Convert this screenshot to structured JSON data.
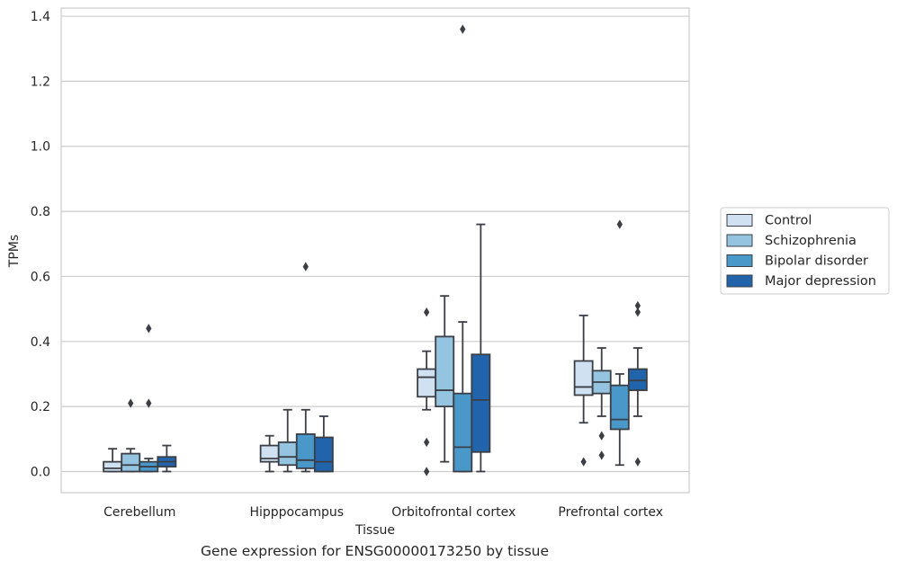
{
  "caption": "Gene expression for ENSG00000173250 by tissue",
  "chart_data": {
    "type": "box",
    "xlabel": "Tissue",
    "ylabel": "TPMs",
    "ylim": [
      -0.065,
      1.425
    ],
    "yticks": [
      "0.0",
      "0.2",
      "0.4",
      "0.6",
      "0.8",
      "1.0",
      "1.2",
      "1.4"
    ],
    "ytick_values": [
      0,
      0.2,
      0.4,
      0.6,
      0.8,
      1.0,
      1.2,
      1.4
    ],
    "grid": "horizontal",
    "legend_position": "right-outside",
    "categories": [
      "Cerebellum",
      "Hipppocampus",
      "Orbitofrontal cortex",
      "Prefrontal cortex"
    ],
    "series": [
      {
        "name": "Control",
        "color": "#d0e1f2",
        "boxes": [
          {
            "whislo": 0.0,
            "q1": 0.0,
            "med": 0.01,
            "q3": 0.03,
            "whishi": 0.07,
            "fliers": []
          },
          {
            "whislo": 0.0,
            "q1": 0.03,
            "med": 0.04,
            "q3": 0.08,
            "whishi": 0.11,
            "fliers": []
          },
          {
            "whislo": 0.19,
            "q1": 0.23,
            "med": 0.29,
            "q3": 0.315,
            "whishi": 0.37,
            "fliers": [
              0.49,
              0.09,
              0.0
            ]
          },
          {
            "whislo": 0.15,
            "q1": 0.235,
            "med": 0.26,
            "q3": 0.34,
            "whishi": 0.48,
            "fliers": [
              0.03
            ]
          }
        ]
      },
      {
        "name": "Schizophrenia",
        "color": "#94c4df",
        "boxes": [
          {
            "whislo": 0.0,
            "q1": 0.0,
            "med": 0.02,
            "q3": 0.055,
            "whishi": 0.07,
            "fliers": [
              0.21
            ]
          },
          {
            "whislo": 0.0,
            "q1": 0.02,
            "med": 0.045,
            "q3": 0.09,
            "whishi": 0.19,
            "fliers": []
          },
          {
            "whislo": 0.03,
            "q1": 0.2,
            "med": 0.25,
            "q3": 0.415,
            "whishi": 0.54,
            "fliers": []
          },
          {
            "whislo": 0.17,
            "q1": 0.24,
            "med": 0.275,
            "q3": 0.31,
            "whishi": 0.38,
            "fliers": [
              0.11,
              0.05
            ]
          }
        ]
      },
      {
        "name": "Bipolar disorder",
        "color": "#4a98c9",
        "boxes": [
          {
            "whislo": 0.0,
            "q1": 0.0,
            "med": 0.015,
            "q3": 0.03,
            "whishi": 0.04,
            "fliers": [
              0.44,
              0.21
            ]
          },
          {
            "whislo": 0.0,
            "q1": 0.01,
            "med": 0.035,
            "q3": 0.115,
            "whishi": 0.19,
            "fliers": [
              0.63
            ]
          },
          {
            "whislo": 0.0,
            "q1": 0.0,
            "med": 0.075,
            "q3": 0.24,
            "whishi": 0.46,
            "fliers": [
              1.36
            ]
          },
          {
            "whislo": 0.02,
            "q1": 0.13,
            "med": 0.16,
            "q3": 0.265,
            "whishi": 0.3,
            "fliers": [
              0.76
            ]
          }
        ]
      },
      {
        "name": "Major depression",
        "color": "#2164ab",
        "boxes": [
          {
            "whislo": 0.0,
            "q1": 0.015,
            "med": 0.03,
            "q3": 0.045,
            "whishi": 0.08,
            "fliers": []
          },
          {
            "whislo": 0.0,
            "q1": 0.0,
            "med": 0.03,
            "q3": 0.105,
            "whishi": 0.17,
            "fliers": []
          },
          {
            "whislo": 0.0,
            "q1": 0.06,
            "med": 0.22,
            "q3": 0.36,
            "whishi": 0.76,
            "fliers": []
          },
          {
            "whislo": 0.17,
            "q1": 0.25,
            "med": 0.28,
            "q3": 0.315,
            "whishi": 0.38,
            "fliers": [
              0.51,
              0.49,
              0.03
            ]
          }
        ]
      }
    ]
  }
}
